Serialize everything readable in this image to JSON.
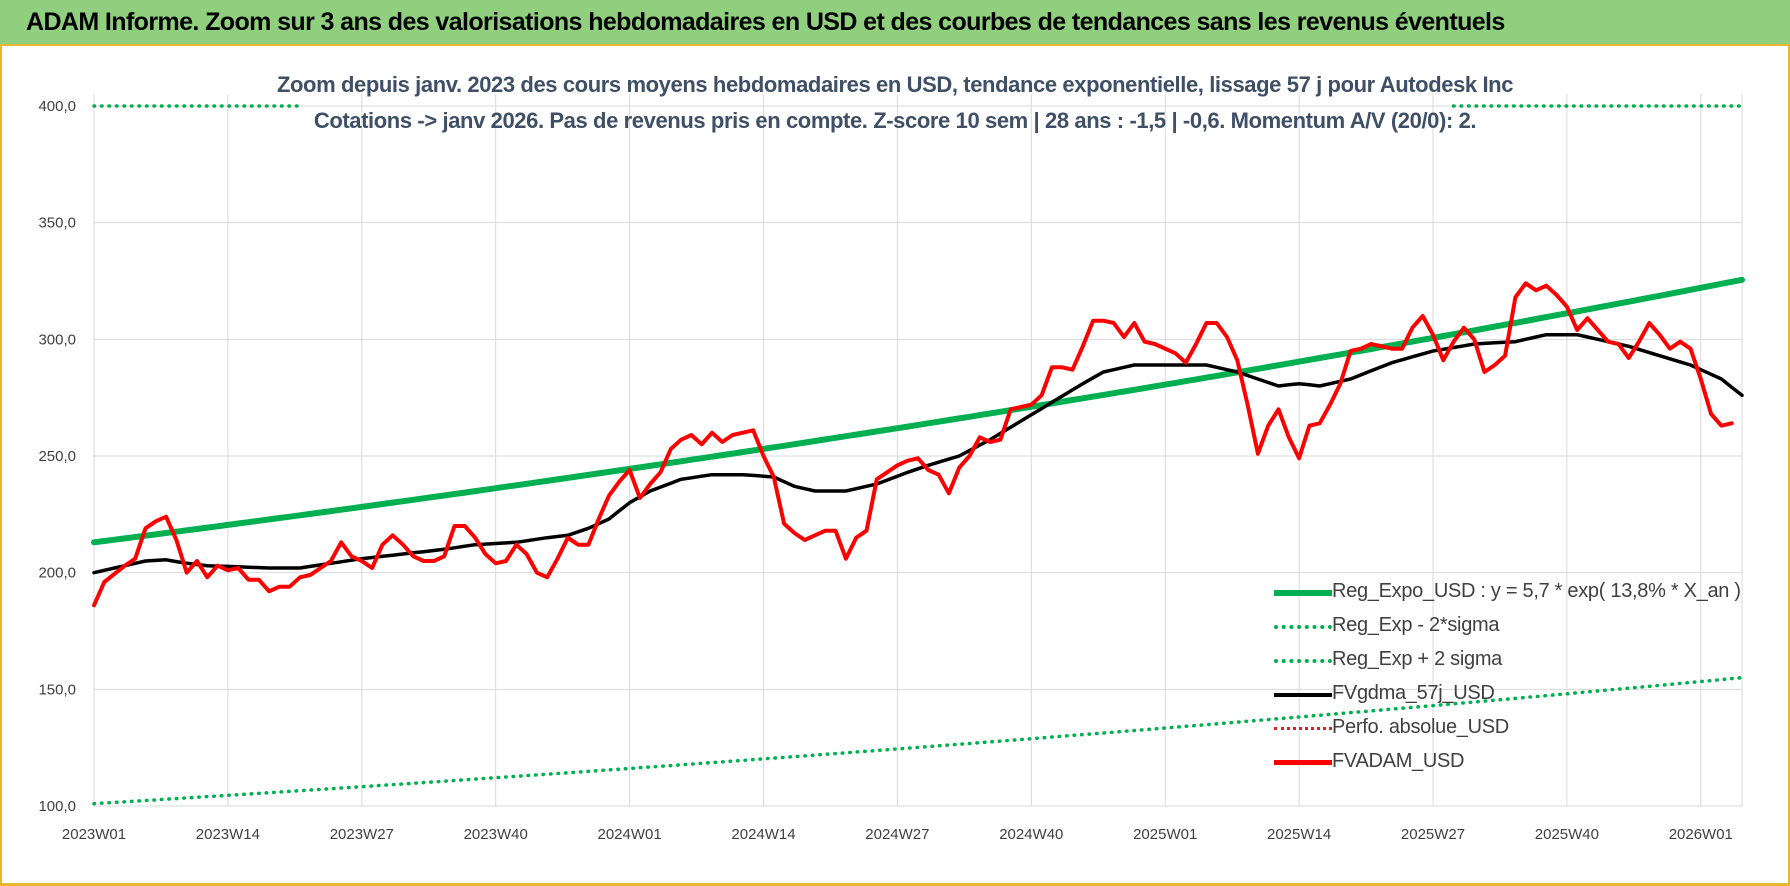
{
  "header": {
    "banner_title": "ADAM Informe. Zoom sur 3 ans des valorisations hebdomadaires en USD et des courbes de tendances sans les revenus éventuels"
  },
  "chart_data": {
    "type": "line",
    "title_line1": "Zoom depuis janv. 2023 des cours moyens hebdomadaires en USD, tendance exponentielle, lissage 57 j pour Autodesk Inc",
    "title_line2": "Cotations -> janv 2026. Pas de revenus pris en compte. Z-score 10 sem | 28 ans : -1,5 | -0,6. Momentum A/V (20/0): 2.",
    "ylim": [
      100,
      400
    ],
    "y_ticks": [
      "100,0",
      "150,0",
      "200,0",
      "250,0",
      "300,0",
      "350,0",
      "400,0"
    ],
    "x_ticks": [
      {
        "week": 0,
        "label": "2023W01"
      },
      {
        "week": 13,
        "label": "2023W14"
      },
      {
        "week": 26,
        "label": "2023W27"
      },
      {
        "week": 39,
        "label": "2023W40"
      },
      {
        "week": 52,
        "label": "2024W01"
      },
      {
        "week": 65,
        "label": "2024W14"
      },
      {
        "week": 78,
        "label": "2024W27"
      },
      {
        "week": 91,
        "label": "2024W40"
      },
      {
        "week": 104,
        "label": "2025W01"
      },
      {
        "week": 117,
        "label": "2025W14"
      },
      {
        "week": 130,
        "label": "2025W27"
      },
      {
        "week": 143,
        "label": "2025W40"
      },
      {
        "week": 156,
        "label": "2026W01"
      }
    ],
    "week_count": 161,
    "grid": true,
    "legend_position": "bottom-right",
    "series": [
      {
        "name": "Reg_Expo_USD : y = 5,7 * exp( 13,8% *  X_an )",
        "color": "#00b050",
        "style": "solid-thick",
        "anchors": [
          [
            0,
            213
          ],
          [
            160,
            325.5
          ]
        ]
      },
      {
        "name": "Reg_Exp - 2*sigma",
        "color": "#00b050",
        "style": "dotted",
        "anchors": [
          [
            0,
            101
          ],
          [
            160,
            155
          ]
        ]
      },
      {
        "name": "Reg_Exp + 2 sigma",
        "color": "#00b050",
        "style": "dotted",
        "anchors": [
          [
            0,
            400
          ],
          [
            160,
            400
          ]
        ],
        "hidden_ranges": [
          [
            20,
            132
          ]
        ]
      },
      {
        "name": "FVgdma_57j_USD",
        "color": "#000000",
        "style": "solid",
        "anchors": [
          [
            0,
            200
          ],
          [
            3,
            203
          ],
          [
            5,
            205
          ],
          [
            7,
            205.5
          ],
          [
            9,
            204
          ],
          [
            11,
            203
          ],
          [
            14,
            202.5
          ],
          [
            17,
            202
          ],
          [
            20,
            202
          ],
          [
            23,
            204
          ],
          [
            26,
            206
          ],
          [
            30,
            208
          ],
          [
            34,
            210
          ],
          [
            37,
            212
          ],
          [
            41,
            213
          ],
          [
            44,
            215
          ],
          [
            46,
            216
          ],
          [
            48,
            219
          ],
          [
            50,
            223
          ],
          [
            52,
            230
          ],
          [
            54,
            235
          ],
          [
            57,
            240
          ],
          [
            60,
            242
          ],
          [
            63,
            242
          ],
          [
            66,
            241
          ],
          [
            68,
            237
          ],
          [
            70,
            235
          ],
          [
            73,
            235
          ],
          [
            76,
            238
          ],
          [
            79,
            243
          ],
          [
            81,
            246
          ],
          [
            84,
            250
          ],
          [
            87,
            257
          ],
          [
            90,
            265
          ],
          [
            93,
            273
          ],
          [
            96,
            281
          ],
          [
            98,
            286
          ],
          [
            101,
            289
          ],
          [
            104,
            289
          ],
          [
            108,
            289
          ],
          [
            111,
            286
          ],
          [
            113,
            283
          ],
          [
            115,
            280
          ],
          [
            117,
            281
          ],
          [
            119,
            280
          ],
          [
            122,
            283
          ],
          [
            126,
            290
          ],
          [
            130,
            295
          ],
          [
            134,
            298
          ],
          [
            138,
            299
          ],
          [
            141,
            302
          ],
          [
            144,
            302
          ],
          [
            146,
            300
          ],
          [
            149,
            297
          ],
          [
            152,
            293
          ],
          [
            155,
            289
          ],
          [
            158,
            283
          ],
          [
            160,
            276
          ]
        ]
      },
      {
        "name": "Perfo. absolue_USD",
        "color": "#e02020",
        "style": "dotted",
        "anchors": []
      },
      {
        "name": "FVADAM_USD",
        "color": "#ff0000",
        "style": "solid",
        "anchors": [
          [
            0,
            186
          ],
          [
            1,
            196
          ],
          [
            3,
            203
          ],
          [
            4,
            206
          ],
          [
            5,
            219
          ],
          [
            6,
            222
          ],
          [
            7,
            224
          ],
          [
            8,
            214
          ],
          [
            9,
            200
          ],
          [
            10,
            205
          ],
          [
            11,
            198
          ],
          [
            12,
            203
          ],
          [
            13,
            201
          ],
          [
            14,
            202
          ],
          [
            15,
            197
          ],
          [
            16,
            197
          ],
          [
            17,
            192
          ],
          [
            18,
            194
          ],
          [
            19,
            194
          ],
          [
            20,
            198
          ],
          [
            21,
            199
          ],
          [
            22,
            202
          ],
          [
            23,
            205
          ],
          [
            24,
            213
          ],
          [
            25,
            207
          ],
          [
            26,
            205
          ],
          [
            27,
            202
          ],
          [
            28,
            212
          ],
          [
            29,
            216
          ],
          [
            30,
            212
          ],
          [
            31,
            207
          ],
          [
            32,
            205
          ],
          [
            33,
            205
          ],
          [
            34,
            207
          ],
          [
            35,
            220
          ],
          [
            36,
            220
          ],
          [
            37,
            215
          ],
          [
            38,
            208
          ],
          [
            39,
            204
          ],
          [
            40,
            205
          ],
          [
            41,
            212
          ],
          [
            42,
            208
          ],
          [
            43,
            200
          ],
          [
            44,
            198
          ],
          [
            45,
            206
          ],
          [
            46,
            215
          ],
          [
            47,
            212
          ],
          [
            48,
            212
          ],
          [
            49,
            223
          ],
          [
            50,
            233
          ],
          [
            51,
            239
          ],
          [
            52,
            244
          ],
          [
            53,
            232
          ],
          [
            54,
            238
          ],
          [
            55,
            243
          ],
          [
            56,
            253
          ],
          [
            57,
            257
          ],
          [
            58,
            259
          ],
          [
            59,
            255
          ],
          [
            60,
            260
          ],
          [
            61,
            256
          ],
          [
            62,
            259
          ],
          [
            63,
            260
          ],
          [
            64,
            261
          ],
          [
            65,
            250
          ],
          [
            66,
            241
          ],
          [
            67,
            221
          ],
          [
            68,
            217
          ],
          [
            69,
            214
          ],
          [
            70,
            216
          ],
          [
            71,
            218
          ],
          [
            72,
            218
          ],
          [
            73,
            206
          ],
          [
            74,
            215
          ],
          [
            75,
            218
          ],
          [
            76,
            240
          ],
          [
            77,
            243
          ],
          [
            78,
            246
          ],
          [
            79,
            248
          ],
          [
            80,
            249
          ],
          [
            81,
            244
          ],
          [
            82,
            242
          ],
          [
            83,
            234
          ],
          [
            84,
            245
          ],
          [
            85,
            250
          ],
          [
            86,
            258
          ],
          [
            87,
            256
          ],
          [
            88,
            257
          ],
          [
            89,
            270
          ],
          [
            90,
            271
          ],
          [
            91,
            272
          ],
          [
            92,
            276
          ],
          [
            93,
            288
          ],
          [
            94,
            288
          ],
          [
            95,
            287
          ],
          [
            96,
            297
          ],
          [
            97,
            308
          ],
          [
            98,
            308
          ],
          [
            99,
            307
          ],
          [
            100,
            301
          ],
          [
            101,
            307
          ],
          [
            102,
            299
          ],
          [
            103,
            298
          ],
          [
            104,
            296
          ],
          [
            105,
            294
          ],
          [
            106,
            290
          ],
          [
            107,
            298
          ],
          [
            108,
            307
          ],
          [
            109,
            307
          ],
          [
            110,
            301
          ],
          [
            111,
            291
          ],
          [
            112,
            272
          ],
          [
            113,
            251
          ],
          [
            114,
            263
          ],
          [
            115,
            270
          ],
          [
            116,
            258
          ],
          [
            117,
            249
          ],
          [
            118,
            263
          ],
          [
            119,
            264
          ],
          [
            120,
            272
          ],
          [
            121,
            281
          ],
          [
            122,
            295
          ],
          [
            123,
            296
          ],
          [
            124,
            298
          ],
          [
            125,
            297
          ],
          [
            126,
            296
          ],
          [
            127,
            296
          ],
          [
            128,
            305
          ],
          [
            129,
            310
          ],
          [
            130,
            302
          ],
          [
            131,
            291
          ],
          [
            132,
            299
          ],
          [
            133,
            305
          ],
          [
            134,
            300
          ],
          [
            135,
            286
          ],
          [
            136,
            289
          ],
          [
            137,
            293
          ],
          [
            138,
            318
          ],
          [
            139,
            324
          ],
          [
            140,
            321
          ],
          [
            141,
            323
          ],
          [
            142,
            319
          ],
          [
            143,
            314
          ],
          [
            144,
            304
          ],
          [
            145,
            309
          ],
          [
            146,
            304
          ],
          [
            147,
            299
          ],
          [
            148,
            298
          ],
          [
            149,
            292
          ],
          [
            150,
            299
          ],
          [
            151,
            307
          ],
          [
            152,
            302
          ],
          [
            153,
            296
          ],
          [
            154,
            299
          ],
          [
            155,
            296
          ],
          [
            156,
            283
          ],
          [
            157,
            268
          ],
          [
            158,
            263
          ],
          [
            159,
            264
          ]
        ]
      }
    ]
  }
}
